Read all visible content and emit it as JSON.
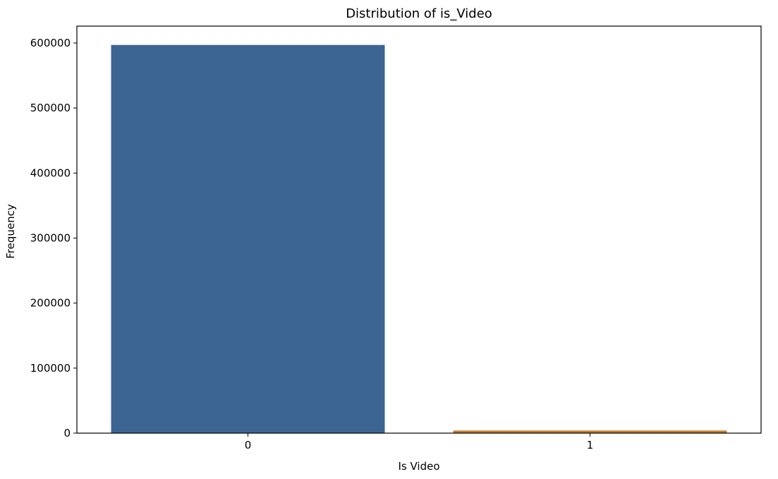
{
  "chart_data": {
    "type": "bar",
    "title": "Distribution of is_Video",
    "xlabel": "Is Video",
    "ylabel": "Frequency",
    "categories": [
      "0",
      "1"
    ],
    "values": [
      597000,
      4000
    ],
    "colors": [
      "#3d6594",
      "#c77a2a"
    ],
    "ylim": [
      0,
      626000
    ],
    "yticks": [
      0,
      100000,
      200000,
      300000,
      400000,
      500000,
      600000
    ],
    "ytick_labels": [
      "0",
      "100000",
      "200000",
      "300000",
      "400000",
      "500000",
      "600000"
    ],
    "grid": false,
    "legend": "none"
  }
}
